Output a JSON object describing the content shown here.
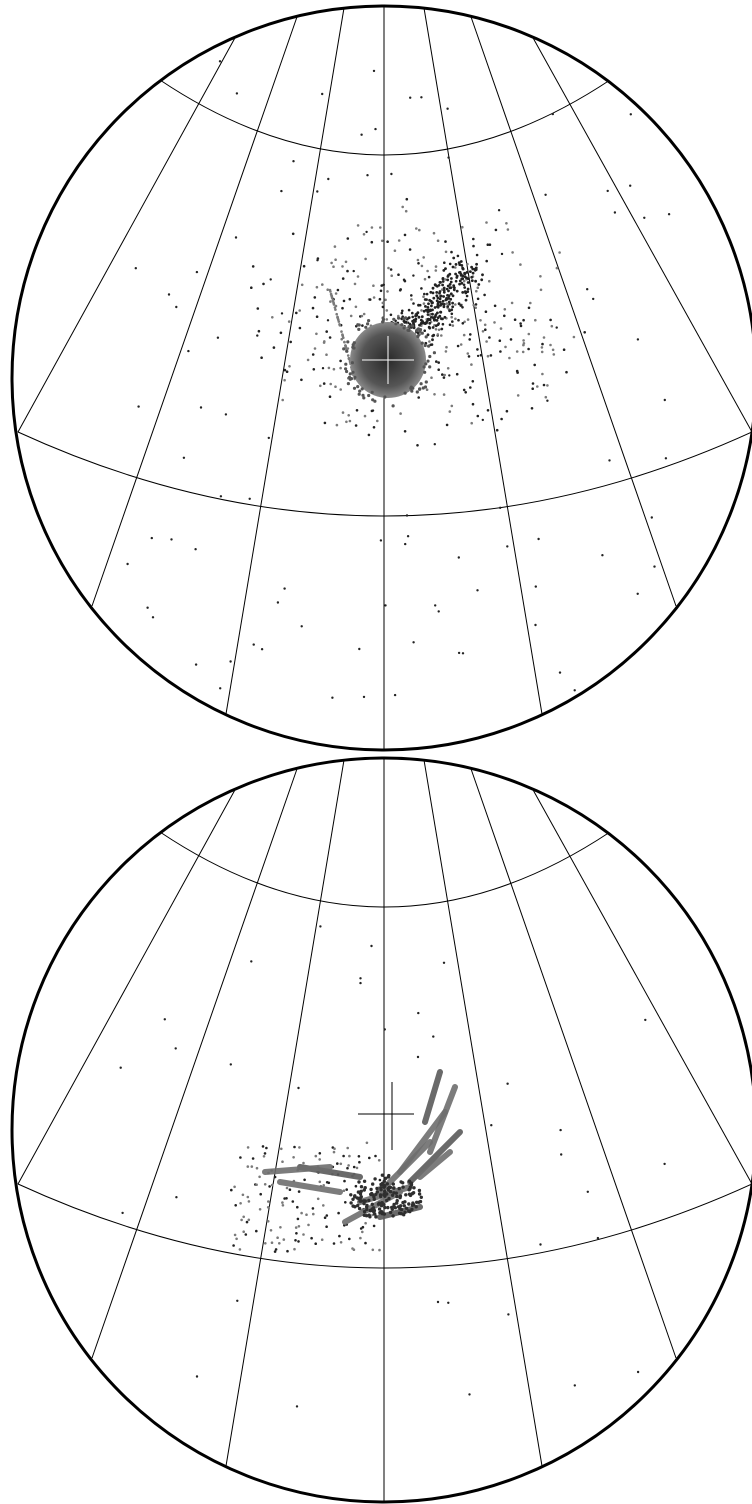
{
  "panels": [
    {
      "id": "top",
      "description_name": "sky-map-top",
      "center_marker": true,
      "cluster": "compact-blob",
      "scatter_density": "medium"
    },
    {
      "id": "bottom",
      "description_name": "sky-map-bottom",
      "center_marker": true,
      "cluster": "arc-streaks",
      "scatter_density": "low"
    }
  ],
  "style": {
    "outline_color": "#000000",
    "grid_color": "#000000",
    "point_color_dark": "#222222",
    "point_color_mid": "#555555",
    "point_color_light": "#7a7a7a",
    "background": "#ffffff"
  }
}
